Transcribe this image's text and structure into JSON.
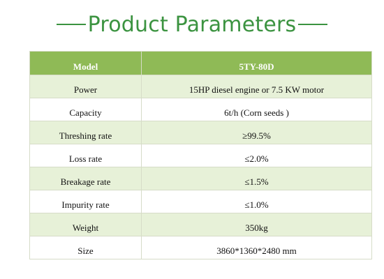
{
  "title": "Product Parameters",
  "header": {
    "col1": "Model",
    "col2": "5TY-80D"
  },
  "rows": [
    {
      "label": "Power",
      "value": "15HP diesel engine or 7.5 KW motor"
    },
    {
      "label": "Capacity",
      "value": "6t/h (Corn seeds )"
    },
    {
      "label": "Threshing rate",
      "value": "≥99.5%"
    },
    {
      "label": "Loss rate",
      "value": "≤2.0%"
    },
    {
      "label": "Breakage rate",
      "value": "≤1.5%"
    },
    {
      "label": "Impurity rate",
      "value": "≤1.0%"
    },
    {
      "label": "Weight",
      "value": "350kg"
    },
    {
      "label": "Size",
      "value": "3860*1360*2480 mm"
    }
  ],
  "colors": {
    "title": "#3b9340",
    "header_bg": "#8fba56",
    "stripe_bg": "#e7f1d8"
  }
}
